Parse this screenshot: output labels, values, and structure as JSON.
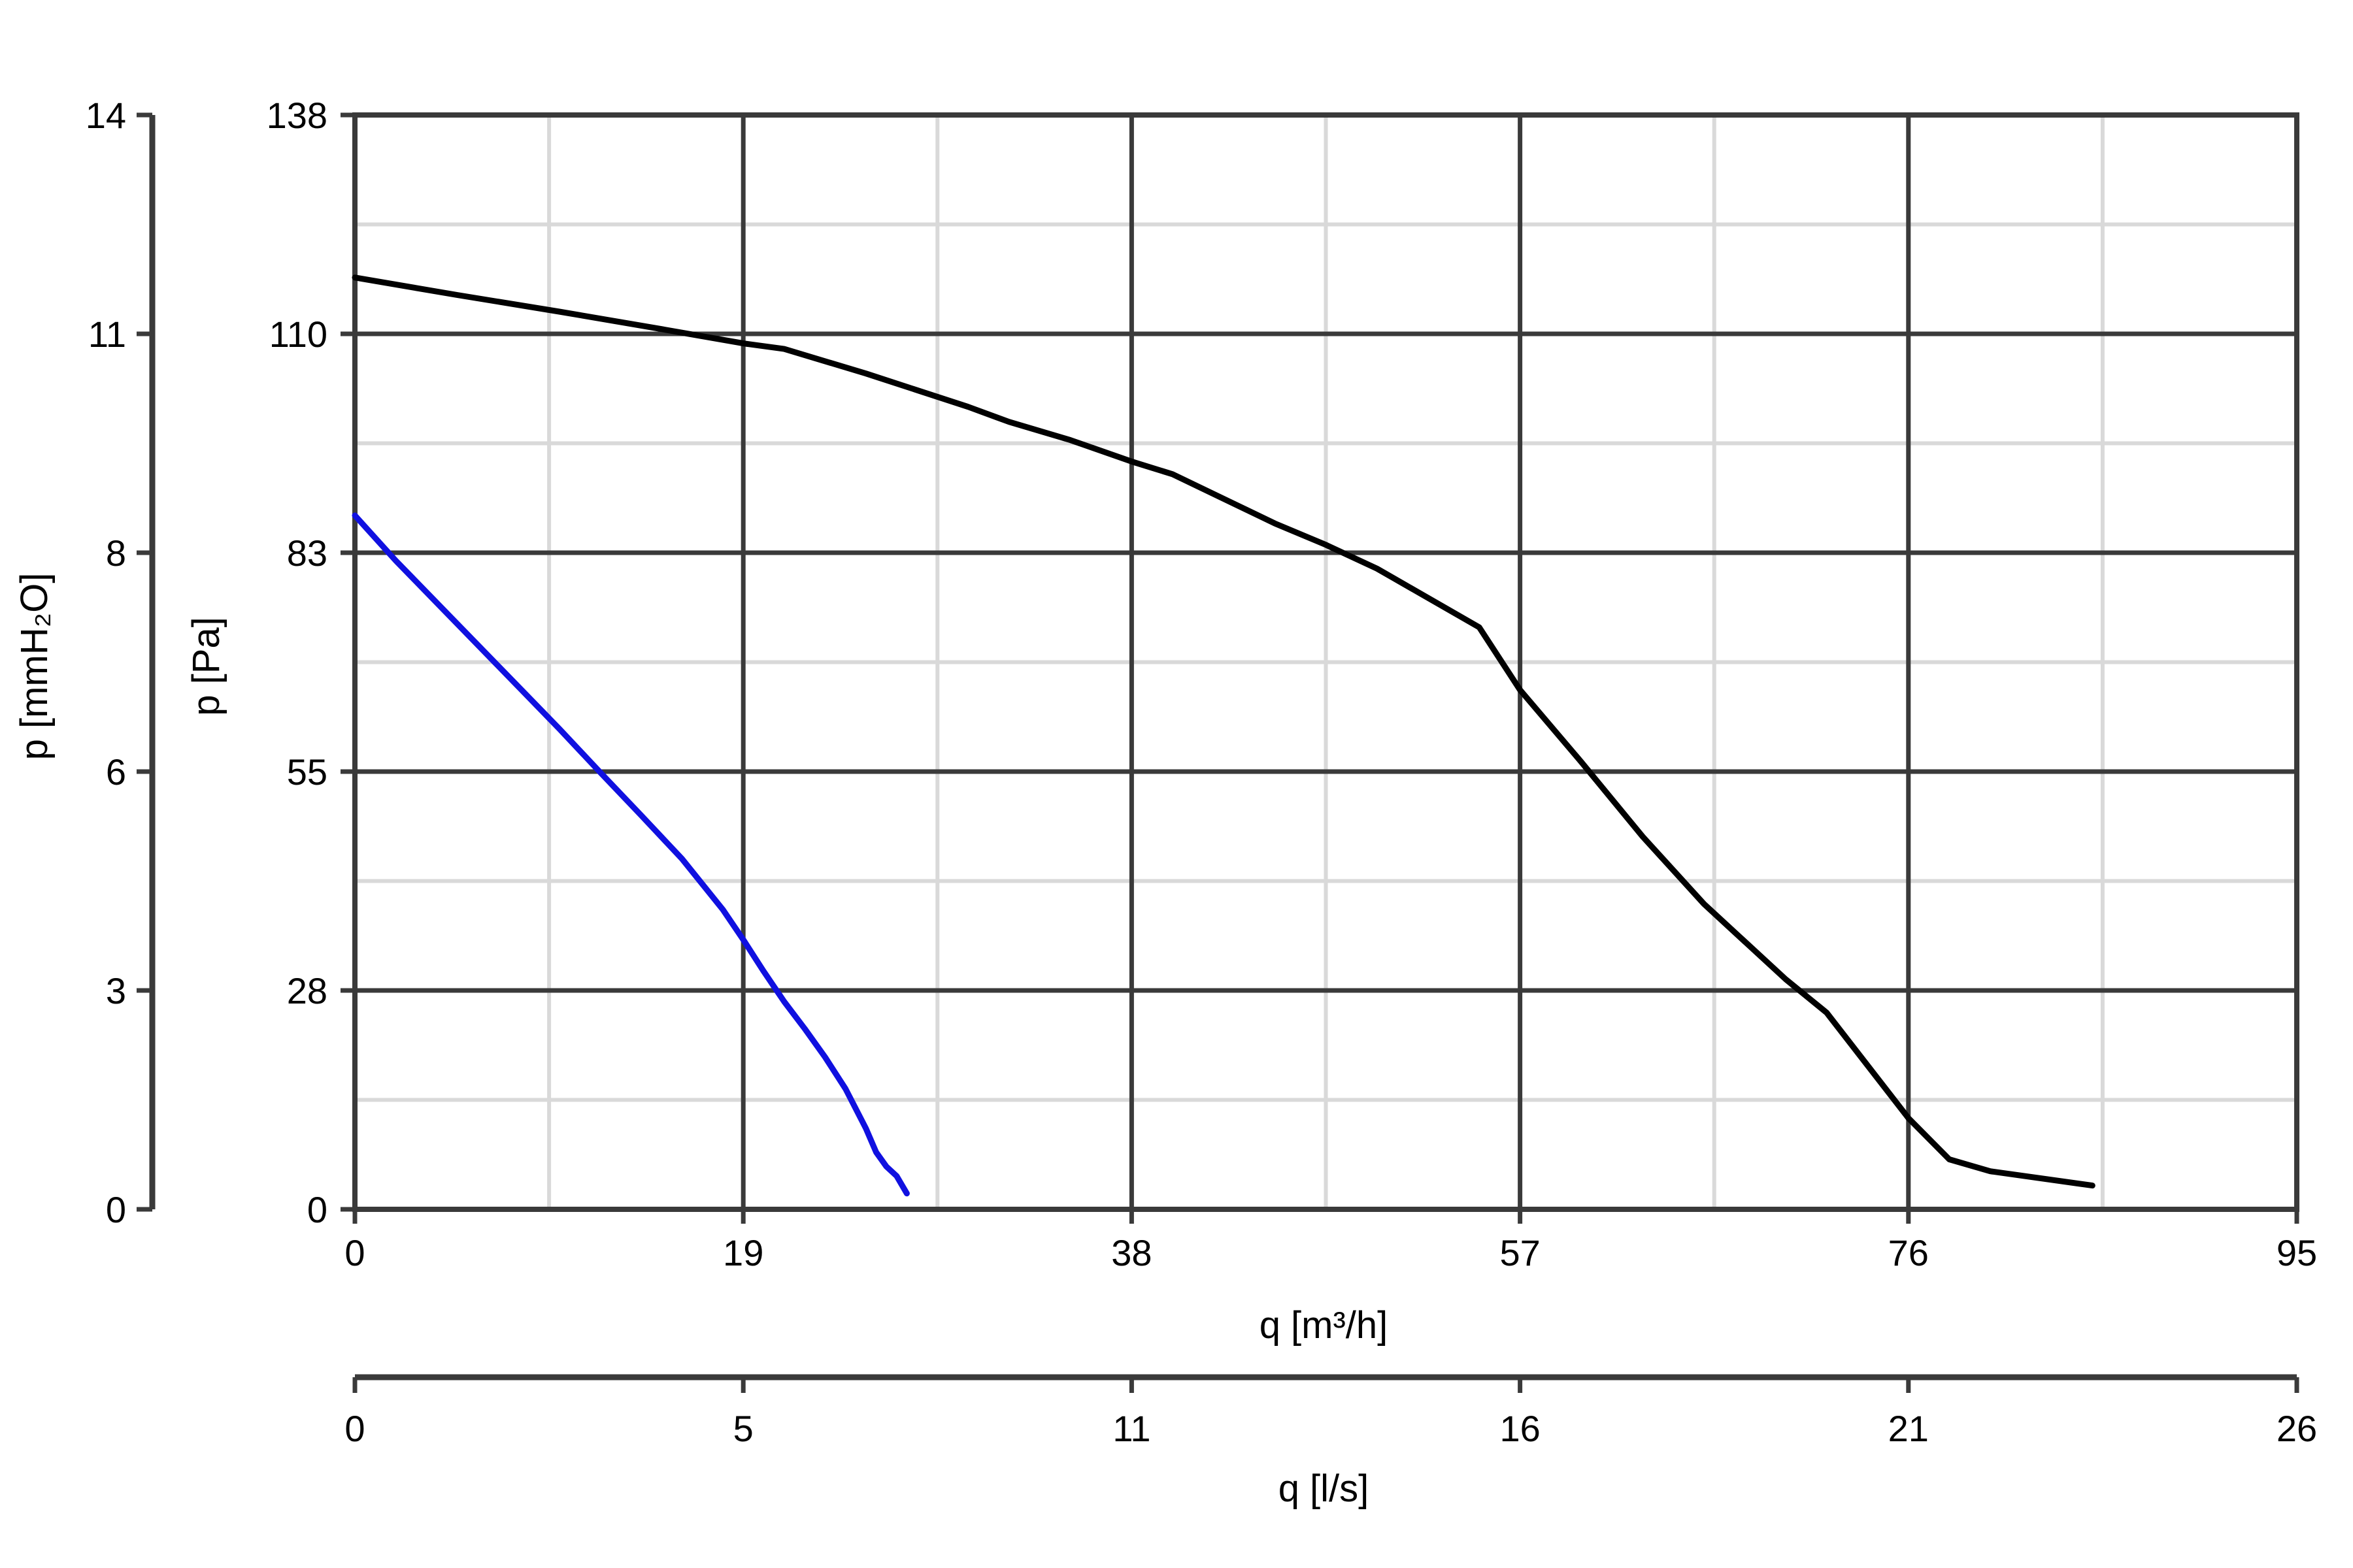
{
  "chart_data": {
    "type": "line",
    "title": "",
    "xlabel": "q [m³/h]",
    "x2label": "q [l/s]",
    "ylabel": "p [Pa]",
    "y2label": "p [mmH₂O]",
    "xlim": [
      0,
      95
    ],
    "ylim": [
      0,
      138
    ],
    "x_ticks": [
      "0",
      "19",
      "38",
      "57",
      "76",
      "95"
    ],
    "x2_ticks": [
      "0",
      "5",
      "11",
      "16",
      "21",
      "26"
    ],
    "y_ticks": [
      "0",
      "28",
      "55",
      "83",
      "110",
      "138"
    ],
    "y2_ticks": [
      "0",
      "3",
      "6",
      "8",
      "11",
      "14"
    ],
    "grid": true,
    "series": [
      {
        "color": "#000000",
        "x": [
          0,
          5,
          10,
          15,
          19,
          21,
          25,
          30,
          32,
          35,
          38,
          40,
          45,
          47.5,
          50,
          55,
          57,
          60,
          63,
          66,
          70,
          72,
          76,
          78,
          80,
          85
        ],
        "y": [
          117.5,
          115.3,
          113.2,
          111,
          109.2,
          108.5,
          105.4,
          101.2,
          99.3,
          97,
          94.3,
          92.7,
          86.5,
          83.8,
          80.8,
          73.4,
          65.5,
          56.4,
          47,
          38.5,
          29,
          24.8,
          11.5,
          6.3,
          4.8,
          3
        ]
      },
      {
        "color": "#1010e0",
        "x": [
          0,
          2,
          4,
          6,
          8,
          10,
          12,
          14,
          16,
          18,
          19,
          20,
          21,
          22,
          23,
          24,
          25,
          25.5,
          26,
          26.5,
          27
        ],
        "y": [
          87.5,
          81.8,
          76.5,
          71.2,
          65.9,
          60.6,
          55.1,
          49.7,
          44.2,
          37.8,
          34,
          30,
          26.2,
          22.8,
          19.2,
          15.2,
          10.2,
          7.2,
          5.4,
          4.2,
          2
        ]
      }
    ]
  }
}
